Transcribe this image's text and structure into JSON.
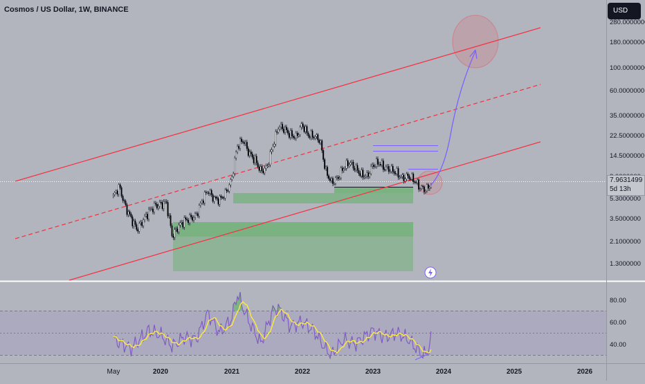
{
  "header": {
    "title": "Cosmos / US Dollar, 1W, BINANCE",
    "currency_button": "USD"
  },
  "price_label": {
    "price": "7.9631499",
    "countdown": "5d 13h"
  },
  "colors": {
    "background": "#b2b5be",
    "channel_line": "#f23645",
    "zone_fill": "#4caf50",
    "projection_arrow": "#7b61ff",
    "rsi_line": "#7e57c2",
    "rsi_ma": "#ffeb3b",
    "candle_bull": "#ffffff",
    "candle_bear": "#000000"
  },
  "chart_data": [
    {
      "type": "candlestick",
      "title": "Cosmos / US Dollar, 1W, BINANCE",
      "y_scale": "log",
      "y_ticks": [
        "280.0000000",
        "180.0000000",
        "100.0000000",
        "60.0000000",
        "35.0000000",
        "22.5000000",
        "14.5000000",
        "8.0000000",
        "5.3000000",
        "3.5000000",
        "2.1000000",
        "1.3000000"
      ],
      "x_ticks": [
        "May",
        "2020",
        "2021",
        "2022",
        "2023",
        "2024",
        "2025",
        "2026"
      ],
      "last_price": 7.9631499,
      "price_path": [
        [
          "2019-05",
          5.5
        ],
        [
          "2019-06",
          7.2
        ],
        [
          "2019-07",
          4.2
        ],
        [
          "2019-08",
          3.0
        ],
        [
          "2019-09",
          2.2
        ],
        [
          "2019-10",
          2.8
        ],
        [
          "2019-11",
          3.6
        ],
        [
          "2019-12",
          4.2
        ],
        [
          "2020-02",
          4.6
        ],
        [
          "2020-03",
          1.8
        ],
        [
          "2020-04",
          2.4
        ],
        [
          "2020-05",
          2.8
        ],
        [
          "2020-07",
          3.2
        ],
        [
          "2020-08",
          4.8
        ],
        [
          "2020-09",
          6.5
        ],
        [
          "2020-10",
          5.2
        ],
        [
          "2020-11",
          5.0
        ],
        [
          "2020-12",
          6.0
        ],
        [
          "2021-01",
          8.5
        ],
        [
          "2021-02",
          22.0
        ],
        [
          "2021-03",
          26.0
        ],
        [
          "2021-04",
          18.0
        ],
        [
          "2021-05",
          15.0
        ],
        [
          "2021-06",
          11.0
        ],
        [
          "2021-07",
          12.0
        ],
        [
          "2021-08",
          22.0
        ],
        [
          "2021-09",
          38.0
        ],
        [
          "2021-10",
          35.0
        ],
        [
          "2021-11",
          30.0
        ],
        [
          "2021-12",
          28.0
        ],
        [
          "2022-01",
          40.0
        ],
        [
          "2022-02",
          30.0
        ],
        [
          "2022-03",
          29.0
        ],
        [
          "2022-04",
          26.0
        ],
        [
          "2022-05",
          11.0
        ],
        [
          "2022-06",
          8.0
        ],
        [
          "2022-07",
          9.0
        ],
        [
          "2022-08",
          12.0
        ],
        [
          "2022-09",
          14.0
        ],
        [
          "2022-10",
          12.0
        ],
        [
          "2022-11",
          10.0
        ],
        [
          "2022-12",
          9.5
        ],
        [
          "2023-01",
          13.0
        ],
        [
          "2023-02",
          14.0
        ],
        [
          "2023-03",
          12.0
        ],
        [
          "2023-04",
          11.5
        ],
        [
          "2023-05",
          10.5
        ],
        [
          "2023-06",
          9.0
        ],
        [
          "2023-07",
          9.6
        ],
        [
          "2023-08",
          8.6
        ],
        [
          "2023-09",
          7.0
        ],
        [
          "2023-10",
          6.6
        ],
        [
          "2023-11",
          7.96
        ]
      ],
      "rsi": {
        "y_ticks": [
          "80.00",
          "60.00",
          "40.00"
        ],
        "band": [
          30,
          70
        ],
        "values": [
          [
            "2019-05",
            44
          ],
          [
            "2019-08",
            36
          ],
          [
            "2019-11",
            52
          ],
          [
            "2020-01",
            48
          ],
          [
            "2020-03",
            38
          ],
          [
            "2020-05",
            46
          ],
          [
            "2020-07",
            44
          ],
          [
            "2020-09",
            68
          ],
          [
            "2020-11",
            50
          ],
          [
            "2021-01",
            62
          ],
          [
            "2021-02",
            85
          ],
          [
            "2021-04",
            60
          ],
          [
            "2021-06",
            40
          ],
          [
            "2021-08",
            70
          ],
          [
            "2021-09",
            72
          ],
          [
            "2021-11",
            56
          ],
          [
            "2022-01",
            60
          ],
          [
            "2022-03",
            52
          ],
          [
            "2022-05",
            35
          ],
          [
            "2022-06",
            30
          ],
          [
            "2022-08",
            44
          ],
          [
            "2022-10",
            40
          ],
          [
            "2023-01",
            52
          ],
          [
            "2023-03",
            46
          ],
          [
            "2023-05",
            50
          ],
          [
            "2023-07",
            44
          ],
          [
            "2023-09",
            32
          ],
          [
            "2023-10",
            30
          ],
          [
            "2023-11",
            47
          ]
        ]
      }
    }
  ]
}
